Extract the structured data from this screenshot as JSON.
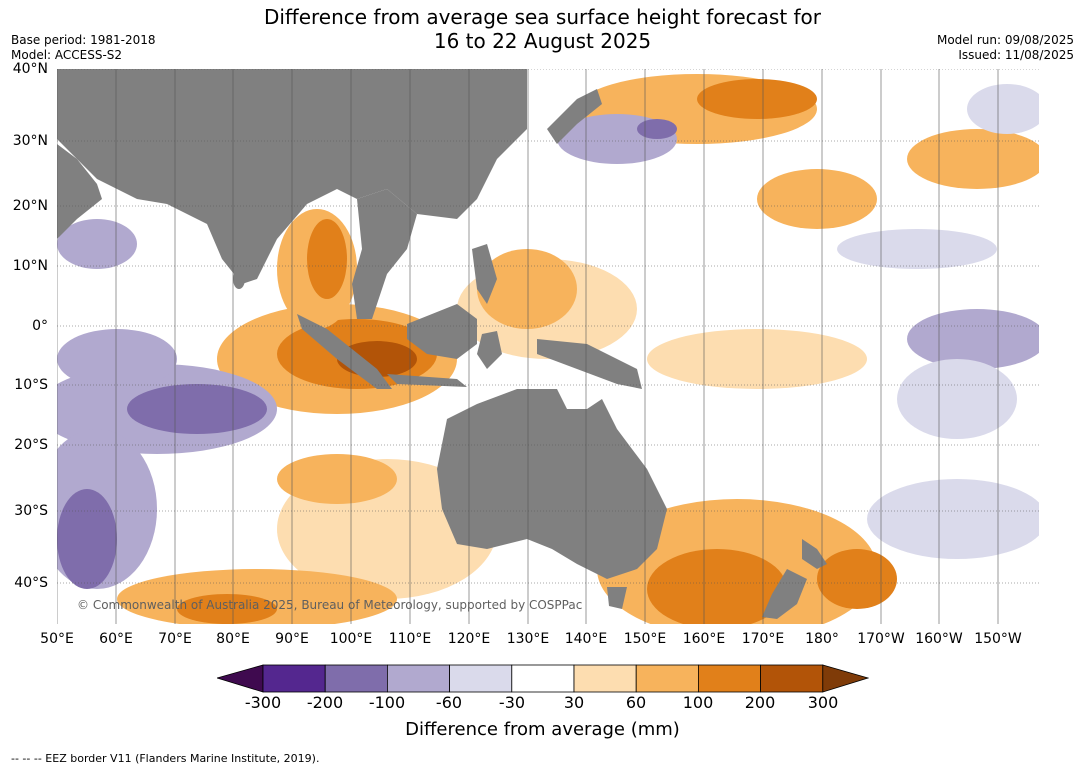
{
  "title": {
    "line1": "Difference from average sea surface height forecast for",
    "line2": "16 to 22 August 2025"
  },
  "meta_left": {
    "base_period": "Base period: 1981-2018",
    "model": "Model: ACCESS-S2"
  },
  "meta_right": {
    "model_run": "Model run: 09/08/2025",
    "issued": "Issued: 11/08/2025"
  },
  "lat_labels": [
    "40°N",
    "30°N",
    "20°N",
    "10°N",
    "0°",
    "10°S",
    "20°S",
    "30°S",
    "40°S"
  ],
  "lon_labels": [
    "50°E",
    "60°E",
    "70°E",
    "80°E",
    "90°E",
    "100°E",
    "110°E",
    "120°E",
    "130°E",
    "140°E",
    "150°E",
    "160°E",
    "170°E",
    "180°",
    "170°W",
    "160°W",
    "150°W"
  ],
  "copyright": "© Commonwealth of Australia 2025, Bureau of Meteorology, supported by COSPPac",
  "colorbar": {
    "ticks": [
      "-300",
      "-200",
      "-100",
      "-60",
      "-30",
      "30",
      "60",
      "100",
      "200",
      "300"
    ],
    "colors": [
      "#3f0a4f",
      "#54278f",
      "#7f6dab",
      "#b1a9cf",
      "#dadaeb",
      "#ffffff",
      "#fdddb0",
      "#f7b35c",
      "#e1801a",
      "#b25408",
      "#7f3b08"
    ],
    "label": "Difference from average (mm)"
  },
  "eez_note": "--  --  -- EEZ border V11 (Flanders Marine Institute, 2019).",
  "land_color": "#808080"
}
